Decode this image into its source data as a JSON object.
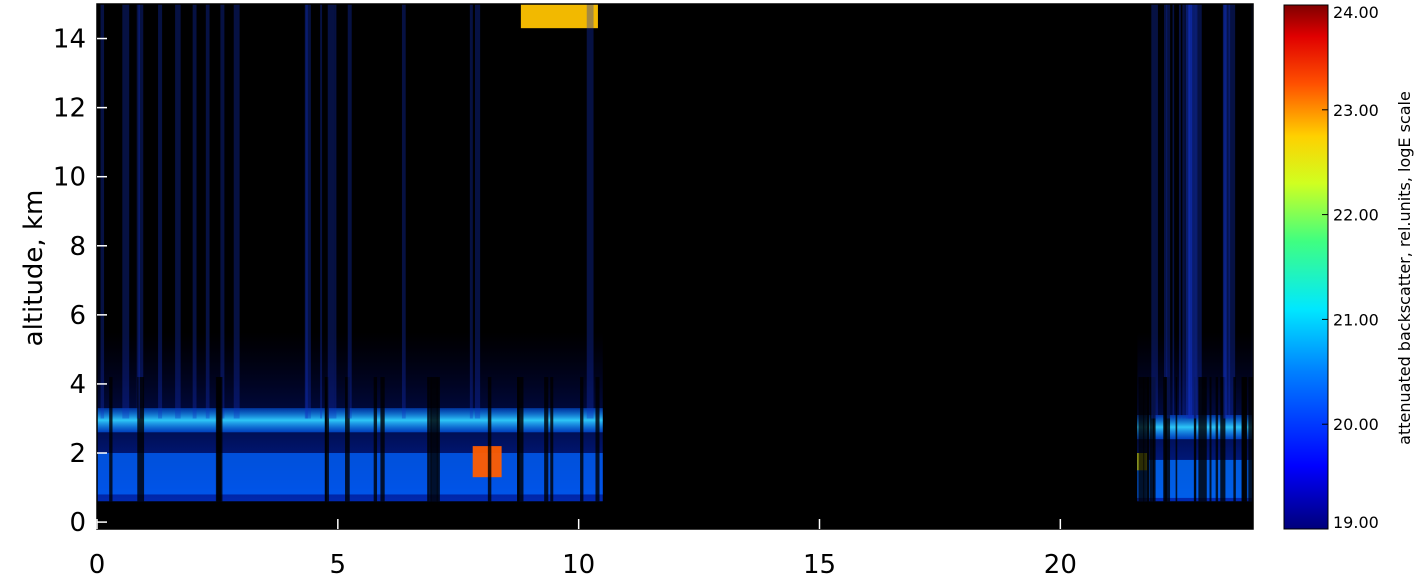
{
  "chart_data": {
    "type": "heatmap",
    "title": "",
    "xlabel": "",
    "ylabel": "altitude, km",
    "xlim": [
      0,
      24
    ],
    "ylim": [
      -0.2,
      15
    ],
    "x_ticks": [
      0,
      5,
      10,
      15,
      20
    ],
    "y_ticks": [
      0,
      2,
      4,
      6,
      8,
      10,
      12,
      14
    ],
    "colorbar": {
      "label": "attenuated backscatter, rel.units, logE scale",
      "min": 19.0,
      "max": 24.0,
      "ticks": [
        "19.00",
        "20.00",
        "21.00",
        "22.00",
        "23.00",
        "24.00"
      ],
      "colormap": "jet"
    },
    "data_gaps": [
      [
        10.5,
        21.5
      ]
    ],
    "features": [
      {
        "type": "aerosol_layer",
        "x_range": [
          0,
          10.5
        ],
        "altitude_km": [
          2.6,
          3.3
        ],
        "value": 20.7
      },
      {
        "type": "aerosol_layer",
        "x_range": [
          21.6,
          24
        ],
        "altitude_km": [
          2.4,
          3.1
        ],
        "value": 20.6
      },
      {
        "type": "boundary_layer",
        "x_range": [
          0,
          10.5
        ],
        "altitude_km": [
          0.8,
          2.0
        ],
        "value": 20.3
      },
      {
        "type": "boundary_layer",
        "x_range": [
          21.6,
          24
        ],
        "altitude_km": [
          0.7,
          1.8
        ],
        "value": 20.4
      },
      {
        "type": "cloud",
        "x_range": [
          7.8,
          8.4
        ],
        "altitude_km": [
          1.3,
          2.2
        ],
        "value": 23.2
      },
      {
        "type": "cloud",
        "x_range": [
          8.8,
          10.4
        ],
        "altitude_km": [
          14.3,
          15.0
        ],
        "value": 22.8
      },
      {
        "type": "cloud",
        "x_range": [
          21.6,
          21.8
        ],
        "altitude_km": [
          1.5,
          2.0
        ],
        "value": 22.5
      }
    ]
  }
}
